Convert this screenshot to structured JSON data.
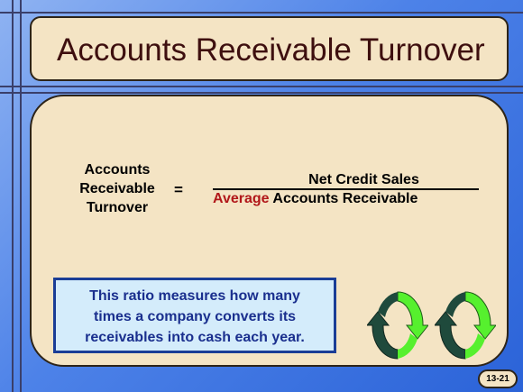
{
  "slide": {
    "title": "Accounts Receivable Turnover",
    "formula": {
      "lhs_lines": [
        "Accounts",
        "Receivable",
        "Turnover"
      ],
      "equals": "=",
      "numerator": "Net Credit Sales",
      "denominator_accent": "Average",
      "denominator_rest": " Accounts Receivable"
    },
    "note_lines": [
      "This ratio measures how many",
      "times a company converts its",
      "receivables into cash each year."
    ],
    "page_number": "13-21"
  },
  "icons": [
    "recycle-arrows-icon",
    "recycle-arrows-icon"
  ],
  "colors": {
    "background": "#4d82e8",
    "panel": "#f4e4c4",
    "title_text": "#3e0f0f",
    "accent_red": "#b1171a",
    "note_bg": "#d4ecfb",
    "note_text": "#1a2f8e",
    "arrow_dark": "#1f4a3c",
    "arrow_green": "#56f02e"
  }
}
